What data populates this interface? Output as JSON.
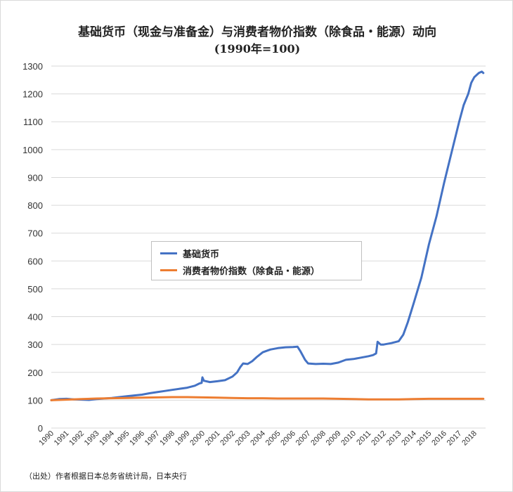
{
  "chart_data": {
    "type": "line",
    "title": "基础货币（现金与准备金）与消费者物价指数（除食品・能源）动向",
    "subtitle": "(1990年=100)",
    "xlabel": "",
    "ylabel": "",
    "xlim": [
      1990,
      2018.75
    ],
    "ylim": [
      0,
      1300
    ],
    "yticks": [
      0,
      100,
      200,
      300,
      400,
      500,
      600,
      700,
      800,
      900,
      1000,
      1100,
      1200,
      1300
    ],
    "xticks": [
      "1990",
      "1991",
      "1992",
      "1993",
      "1994",
      "1995",
      "1996",
      "1997",
      "1998",
      "1999",
      "2000",
      "2001",
      "2002",
      "2003",
      "2004",
      "2005",
      "2006",
      "2007",
      "2008",
      "2009",
      "2010",
      "2011",
      "2012",
      "2013",
      "2014",
      "2015",
      "2016",
      "2017",
      "2018"
    ],
    "grid": "horizontal",
    "legend_position": "center-left",
    "series": [
      {
        "name": "基础货币",
        "color": "#4472c4",
        "points": [
          [
            1990,
            100
          ],
          [
            1990.5,
            104
          ],
          [
            1991,
            105
          ],
          [
            1991.5,
            103
          ],
          [
            1992,
            102
          ],
          [
            1992.5,
            101
          ],
          [
            1993,
            104
          ],
          [
            1993.5,
            106
          ],
          [
            1994,
            108
          ],
          [
            1994.5,
            111
          ],
          [
            1995,
            114
          ],
          [
            1995.5,
            117
          ],
          [
            1996,
            120
          ],
          [
            1996.5,
            125
          ],
          [
            1997,
            129
          ],
          [
            1997.5,
            133
          ],
          [
            1998,
            137
          ],
          [
            1998.5,
            141
          ],
          [
            1999,
            145
          ],
          [
            1999.5,
            152
          ],
          [
            1999.8,
            160
          ],
          [
            1999.95,
            162
          ],
          [
            2000,
            182
          ],
          [
            2000.1,
            170
          ],
          [
            2000.5,
            165
          ],
          [
            2001,
            168
          ],
          [
            2001.5,
            172
          ],
          [
            2002,
            185
          ],
          [
            2002.3,
            200
          ],
          [
            2002.5,
            218
          ],
          [
            2002.7,
            232
          ],
          [
            2003,
            230
          ],
          [
            2003.3,
            240
          ],
          [
            2003.6,
            255
          ],
          [
            2004,
            272
          ],
          [
            2004.5,
            282
          ],
          [
            2005,
            287
          ],
          [
            2005.5,
            290
          ],
          [
            2006,
            291
          ],
          [
            2006.3,
            292
          ],
          [
            2006.5,
            275
          ],
          [
            2006.8,
            245
          ],
          [
            2007,
            232
          ],
          [
            2007.5,
            230
          ],
          [
            2008,
            231
          ],
          [
            2008.5,
            230
          ],
          [
            2009,
            235
          ],
          [
            2009.5,
            245
          ],
          [
            2010,
            248
          ],
          [
            2010.5,
            253
          ],
          [
            2011,
            258
          ],
          [
            2011.3,
            262
          ],
          [
            2011.5,
            268
          ],
          [
            2011.6,
            310
          ],
          [
            2011.8,
            300
          ],
          [
            2012,
            300
          ],
          [
            2012.5,
            305
          ],
          [
            2013,
            312
          ],
          [
            2013.3,
            335
          ],
          [
            2013.6,
            380
          ],
          [
            2014,
            450
          ],
          [
            2014.5,
            540
          ],
          [
            2015,
            660
          ],
          [
            2015.5,
            760
          ],
          [
            2016,
            880
          ],
          [
            2016.5,
            990
          ],
          [
            2017,
            1100
          ],
          [
            2017.3,
            1160
          ],
          [
            2017.6,
            1200
          ],
          [
            2017.8,
            1240
          ],
          [
            2018,
            1260
          ],
          [
            2018.3,
            1275
          ],
          [
            2018.5,
            1280
          ],
          [
            2018.6,
            1275
          ]
        ]
      },
      {
        "name": "消费者物价指数（除食品・能源）",
        "color": "#ed7d31",
        "points": [
          [
            1990,
            100
          ],
          [
            1991,
            102
          ],
          [
            1992,
            104
          ],
          [
            1993,
            106
          ],
          [
            1994,
            107
          ],
          [
            1995,
            108
          ],
          [
            1996,
            109
          ],
          [
            1997,
            110
          ],
          [
            1998,
            111
          ],
          [
            1999,
            111
          ],
          [
            2000,
            110
          ],
          [
            2001,
            109
          ],
          [
            2002,
            108
          ],
          [
            2003,
            107
          ],
          [
            2004,
            107
          ],
          [
            2005,
            106
          ],
          [
            2006,
            106
          ],
          [
            2007,
            106
          ],
          [
            2008,
            106
          ],
          [
            2009,
            105
          ],
          [
            2010,
            104
          ],
          [
            2011,
            103
          ],
          [
            2012,
            103
          ],
          [
            2013,
            103
          ],
          [
            2014,
            104
          ],
          [
            2015,
            105
          ],
          [
            2016,
            105
          ],
          [
            2017,
            105
          ],
          [
            2018,
            105
          ],
          [
            2018.6,
            105
          ]
        ]
      }
    ]
  },
  "source_note": "（出处）作者根据日本总务省统计局，日本央行"
}
